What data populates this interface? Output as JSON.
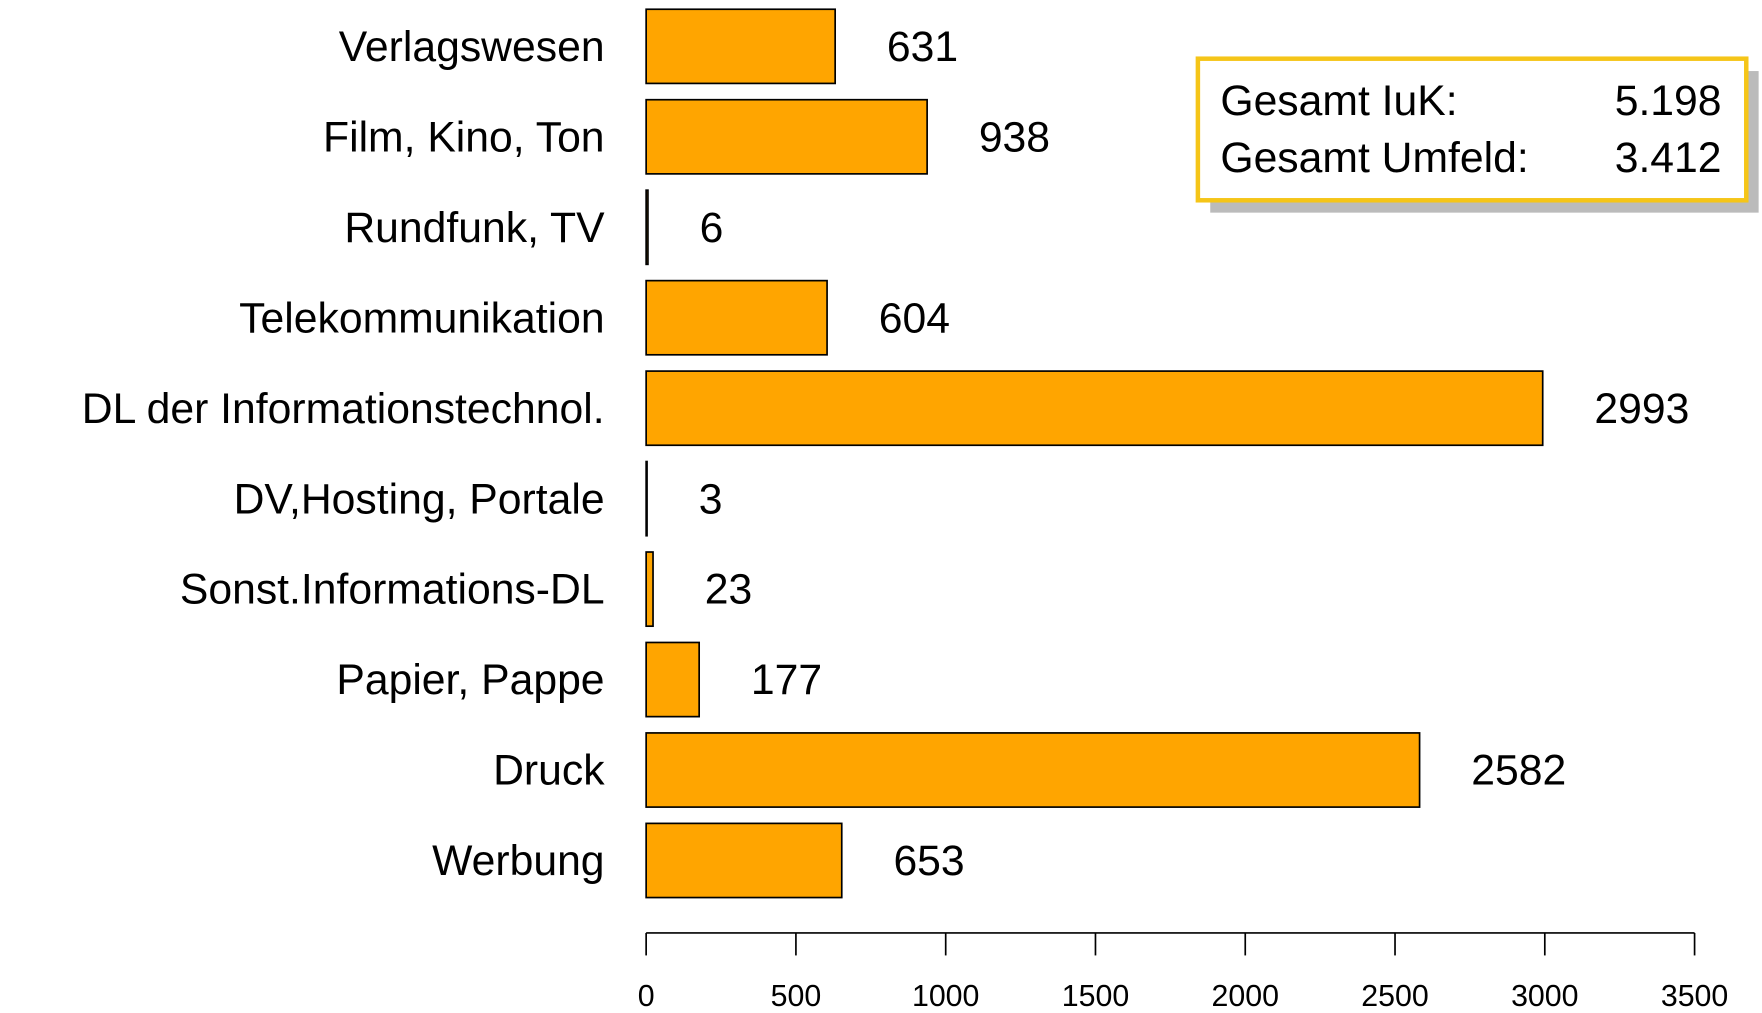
{
  "chart_data": {
    "type": "barh",
    "categories": [
      "Verlagswesen",
      "Film, Kino, Ton",
      "Rundfunk, TV",
      "Telekommunikation",
      "DL der Informationstechnol.",
      "DV,Hosting, Portale",
      "Sonst.Informations-DL",
      "Papier, Pappe",
      "Druck",
      "Werbung"
    ],
    "values": [
      631,
      938,
      6,
      604,
      2993,
      3,
      23,
      177,
      2582,
      653
    ],
    "color": "#ffa500",
    "xlim": [
      0,
      3500
    ],
    "xticks": [
      0,
      500,
      1000,
      1500,
      2000,
      2500,
      3000,
      3500
    ],
    "annotations": [
      {
        "label": "Gesamt IuK:",
        "value": "5.198"
      },
      {
        "label": "Gesamt Umfeld:",
        "value": "3.412"
      }
    ]
  }
}
